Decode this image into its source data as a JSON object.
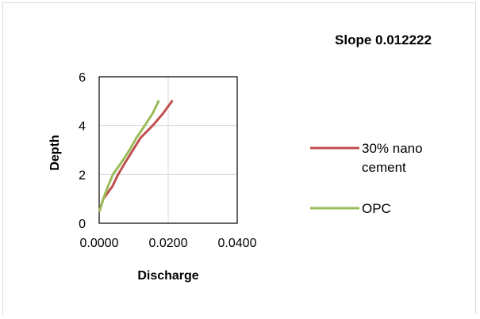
{
  "chart_data": {
    "type": "line",
    "title": "Slope 0.012222",
    "xlabel": "Discharge",
    "ylabel": "Depth",
    "xlim": [
      0,
      0.04
    ],
    "ylim": [
      0,
      6
    ],
    "x_ticks": [
      "0.0000",
      "0.0200",
      "0.0400"
    ],
    "y_ticks": [
      "0",
      "2",
      "4",
      "6"
    ],
    "grid": true,
    "legend_position": "right",
    "series": [
      {
        "name": "30% nano cement",
        "legend_lines": [
          "30% nano",
          "cement"
        ],
        "color": "#c0504d",
        "points": [
          [
            0.0001,
            0.5
          ],
          [
            0.0012,
            1.0
          ],
          [
            0.0038,
            1.5
          ],
          [
            0.0055,
            2.0
          ],
          [
            0.0076,
            2.5
          ],
          [
            0.0098,
            3.0
          ],
          [
            0.012,
            3.5
          ],
          [
            0.0155,
            4.0
          ],
          [
            0.0185,
            4.5
          ],
          [
            0.0211,
            5.0
          ]
        ]
      },
      {
        "name": "OPC",
        "legend_lines": [
          "OPC"
        ],
        "color": "#9bbb59",
        "points": [
          [
            0.0001,
            0.5
          ],
          [
            0.0012,
            1.0
          ],
          [
            0.0025,
            1.5
          ],
          [
            0.004,
            2.0
          ],
          [
            0.0065,
            2.5
          ],
          [
            0.0088,
            3.0
          ],
          [
            0.0108,
            3.5
          ],
          [
            0.0132,
            4.0
          ],
          [
            0.0155,
            4.5
          ],
          [
            0.0172,
            5.0
          ]
        ]
      }
    ]
  }
}
